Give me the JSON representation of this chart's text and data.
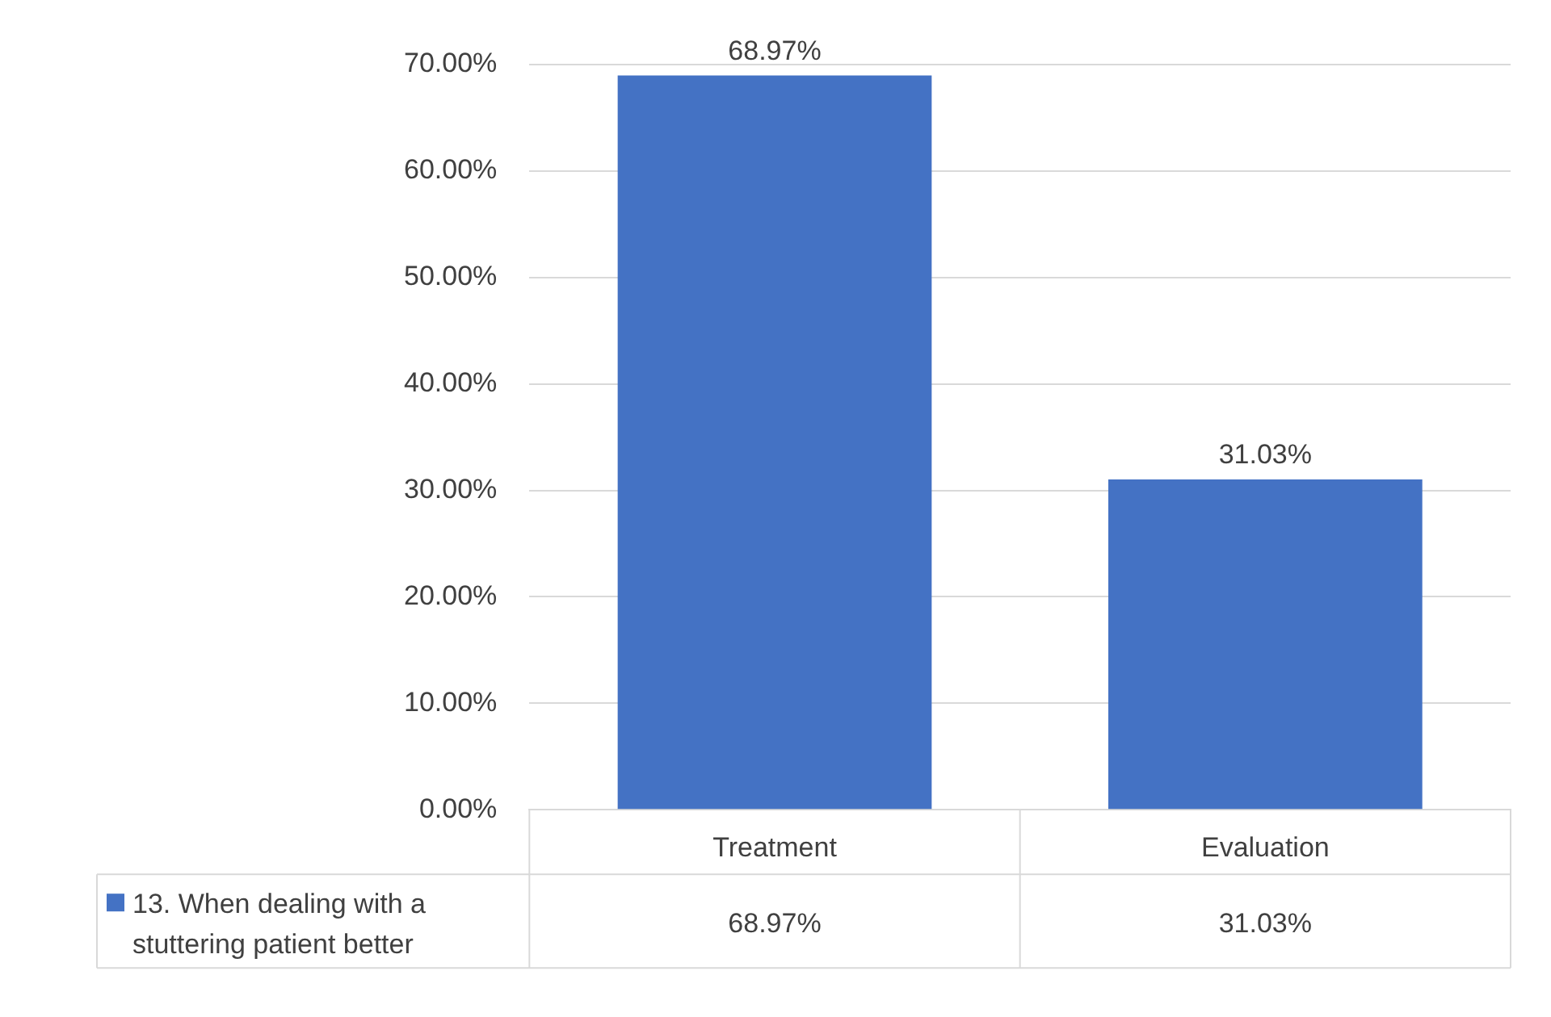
{
  "chart_data": {
    "type": "bar",
    "categories": [
      "Treatment",
      "Evaluation"
    ],
    "series": [
      {
        "name": "13. When dealing with a stuttering patient better",
        "color": "#4472c4",
        "values": [
          68.97,
          31.03
        ],
        "value_labels": [
          "68.97%",
          "31.03%"
        ]
      }
    ],
    "ylim": [
      0,
      70
    ],
    "yticks": [
      {
        "value": 0,
        "label": "0.00%"
      },
      {
        "value": 10,
        "label": "10.00%"
      },
      {
        "value": 20,
        "label": "20.00%"
      },
      {
        "value": 30,
        "label": "30.00%"
      },
      {
        "value": 40,
        "label": "40.00%"
      },
      {
        "value": 50,
        "label": "50.00%"
      },
      {
        "value": 60,
        "label": "60.00%"
      },
      {
        "value": 70,
        "label": "70.00%"
      }
    ],
    "grid": "y",
    "legend": "bottom"
  }
}
